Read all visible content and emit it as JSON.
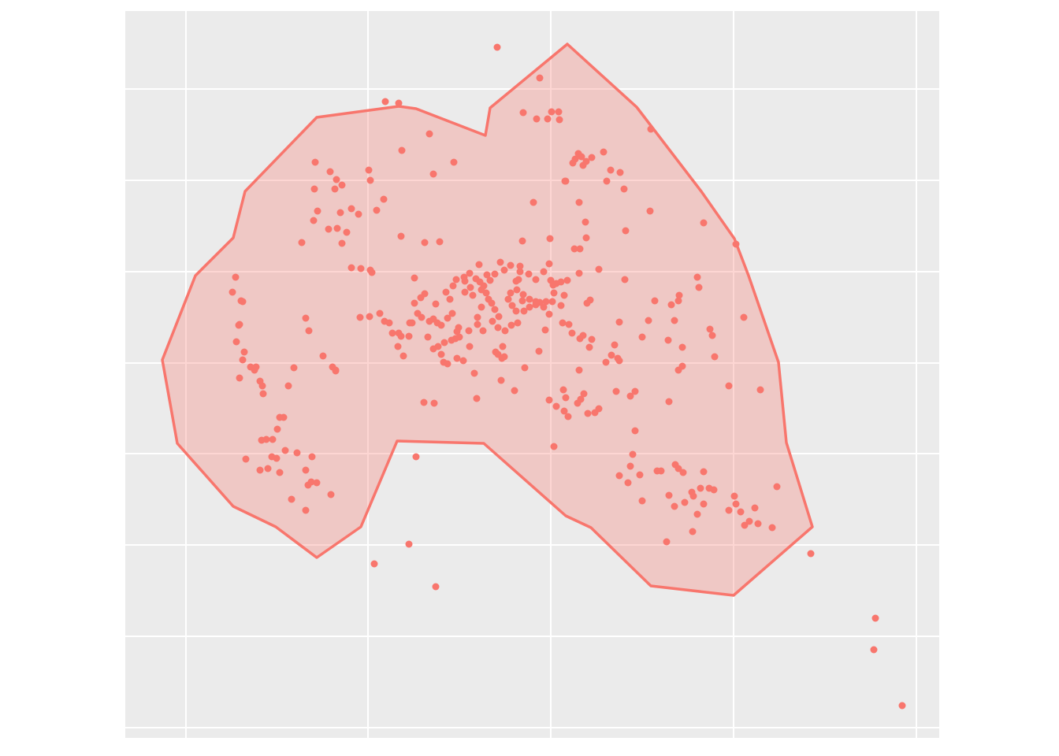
{
  "chart_data": {
    "type": "scatter",
    "color": "#F8766D",
    "grid": true,
    "xlim": [
      159,
      1192
    ],
    "ylim": [
      937,
      14
    ],
    "xticks": [
      236,
      467,
      699,
      931,
      1163
    ],
    "yticks": [
      924,
      808,
      692,
      576,
      461,
      345,
      229,
      113
    ],
    "hull": {
      "x": [
        720,
        808,
        890,
        932,
        950,
        988,
        998,
        1031,
        931,
        826,
        750,
        718,
        614,
        504,
        458,
        402,
        350,
        296,
        225,
        206,
        248,
        296,
        311,
        402,
        506,
        528,
        616,
        622
      ],
      "y": [
        56,
        136,
        243,
        303,
        350,
        460,
        562,
        669,
        756,
        744,
        670,
        655,
        563,
        560,
        669,
        708,
        669,
        643,
        563,
        457,
        350,
        302,
        243,
        149,
        135,
        138,
        172,
        137
      ]
    },
    "x": [
      631,
      685,
      489,
      506,
      664,
      681,
      695,
      700,
      709,
      710,
      826,
      545,
      510,
      400,
      576,
      468,
      550,
      419,
      427,
      434,
      470,
      425,
      399,
      487,
      478,
      403,
      446,
      432,
      455,
      398,
      417,
      428,
      440,
      509,
      383,
      434,
      539,
      558,
      446,
      458,
      470,
      472,
      526,
      299,
      295,
      306,
      308,
      304,
      303,
      300,
      310,
      308,
      318,
      323,
      304,
      325,
      330,
      333,
      334,
      373,
      366,
      388,
      392,
      410,
      422,
      426,
      355,
      360,
      332,
      338,
      346,
      312,
      330,
      340,
      345,
      351,
      355,
      362,
      377,
      396,
      388,
      391,
      395,
      402,
      420,
      370,
      388,
      469,
      482,
      488,
      494,
      498,
      506,
      509,
      512,
      519,
      520,
      526,
      534,
      539,
      535,
      545,
      550,
      555,
      543,
      550,
      556,
      560,
      563,
      568,
      573,
      578,
      583,
      588,
      596,
      602,
      606,
      613,
      580,
      571,
      575,
      579,
      589,
      596,
      604,
      609,
      611,
      617,
      620,
      624,
      628,
      633,
      632,
      629,
      638,
      640,
      636,
      653,
      666,
      684,
      692,
      697,
      685,
      699,
      701,
      703,
      712,
      716,
      720,
      712,
      714,
      722,
      726,
      736,
      740,
      751,
      748,
      735,
      745,
      749,
      735,
      760,
      793,
      786,
      780,
      776,
      769,
      784,
      786,
      697,
      706,
      716,
      718,
      715,
      721,
      733,
      737,
      741,
      746,
      755,
      760,
      703,
      605,
      538,
      551,
      528,
      519,
      475,
      553,
      782,
      800,
      806,
      806,
      803,
      786,
      797,
      800,
      812,
      815,
      834,
      839,
      857,
      861,
      867,
      869,
      878,
      880,
      889,
      893,
      900,
      906,
      893,
      885,
      849,
      856,
      846,
      879,
      932,
      934,
      925,
      940,
      945,
      951,
      958,
      962,
      980,
      986,
      1029,
      1111,
      1109,
      1145,
      717,
      735,
      743,
      744,
      736,
      729,
      766,
      775,
      770,
      792,
      787,
      794,
      825,
      893,
      934,
      944,
      925,
      965,
      907,
      901,
      904,
      885,
      887,
      861,
      852,
      862,
      866,
      861,
      866,
      856,
      848,
      831,
      823,
      815,
      849,
      677,
      698,
      663,
      734,
      730,
      740,
      744,
      751,
      727,
      738,
      718,
      697,
      706,
      660,
      658,
      656,
      664,
      672,
      648,
      645,
      650,
      665,
      672,
      680,
      693,
      655,
      640,
      635,
      628,
      618,
      608,
      614,
      622,
      597,
      590,
      600,
      611,
      606,
      625,
      649,
      657,
      641,
      632,
      637,
      560,
      568,
      582,
      595,
      523,
      530,
      553,
      505,
      457,
      426,
      352,
      564,
      580,
      574,
      566,
      590,
      648,
      660,
      671,
      680,
      690,
      702,
      655,
      663,
      680,
      690
    ],
    "y": [
      60,
      99,
      129,
      131,
      143,
      151,
      151,
      142,
      142,
      152,
      164,
      170,
      191,
      206,
      206,
      216,
      221,
      218,
      228,
      235,
      229,
      240,
      240,
      253,
      267,
      268,
      265,
      270,
      272,
      280,
      291,
      290,
      295,
      300,
      308,
      309,
      308,
      307,
      340,
      341,
      343,
      346,
      353,
      352,
      371,
      382,
      383,
      412,
      413,
      434,
      447,
      457,
      466,
      470,
      480,
      466,
      484,
      490,
      500,
      467,
      490,
      404,
      420,
      452,
      466,
      470,
      530,
      530,
      559,
      558,
      558,
      583,
      597,
      595,
      580,
      582,
      600,
      572,
      575,
      580,
      597,
      616,
      612,
      613,
      628,
      634,
      648,
      402,
      398,
      408,
      410,
      423,
      423,
      427,
      452,
      427,
      410,
      385,
      378,
      373,
      403,
      408,
      405,
      410,
      428,
      443,
      440,
      450,
      460,
      462,
      432,
      430,
      428,
      458,
      440,
      474,
      412,
      420,
      455,
      380,
      363,
      355,
      352,
      347,
      354,
      358,
      368,
      372,
      380,
      385,
      393,
      402,
      416,
      447,
      440,
      453,
      483,
      496,
      467,
      446,
      419,
      399,
      384,
      356,
      383,
      372,
      358,
      375,
      356,
      388,
      410,
      412,
      423,
      430,
      426,
      431,
      441,
      470,
      385,
      381,
      347,
      342,
      355,
      409,
      438,
      451,
      460,
      455,
      458,
      508,
      516,
      522,
      505,
      495,
      529,
      512,
      507,
      500,
      525,
      524,
      519,
      567,
      506,
      511,
      512,
      580,
      691,
      716,
      745,
      497,
      503,
      497,
      547,
      577,
      604,
      613,
      592,
      603,
      636,
      598,
      598,
      590,
      595,
      600,
      638,
      625,
      630,
      620,
      599,
      620,
      622,
      640,
      653,
      629,
      643,
      688,
      675,
      630,
      640,
      648,
      650,
      667,
      662,
      645,
      665,
      670,
      618,
      703,
      785,
      825,
      896,
      230,
      257,
      282,
      302,
      316,
      316,
      193,
      216,
      230,
      240,
      219,
      293,
      268,
      283,
      310,
      403,
      490,
      495,
      453,
      418,
      426,
      352,
      365,
      382,
      387,
      375,
      441,
      470,
      465,
      407,
      432,
      382,
      407,
      428,
      510,
      257,
      303,
      306,
      195,
      202,
      210,
      205,
      200,
      207,
      199,
      230,
      335,
      360,
      345,
      355,
      368,
      374,
      380,
      372,
      380,
      388,
      395,
      390,
      387,
      383,
      357,
      343,
      333,
      348,
      349,
      336,
      363,
      356,
      365,
      371,
      375,
      390,
      403,
      408,
      413,
      410,
      420,
      450,
      455,
      413,
      404,
      416,
      420,
      410,
      398,
      386,
      440,
      403,
      471,
      545,
      435,
      421,
      398,
      371,
      357,
      337,
      338,
      348,
      355,
      345,
      362,
      395,
      382,
      383,
      390
    ]
  }
}
